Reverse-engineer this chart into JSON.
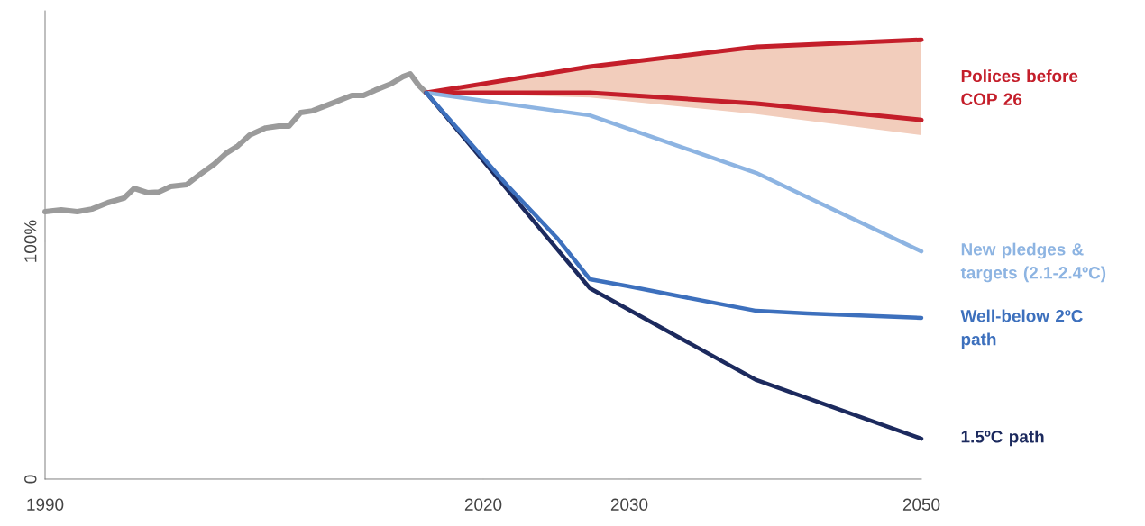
{
  "chart_data": {
    "type": "line",
    "xlim": [
      1990,
      2050
    ],
    "ylim": [
      0,
      197
    ],
    "xticks": [
      1990,
      2020,
      2030,
      2050
    ],
    "yticks": [
      0,
      {
        "value": 100,
        "label": "100%"
      }
    ],
    "series": [
      {
        "color": "#9b9b9b",
        "x": [
          1990,
          1991.1,
          1992.2,
          1993.2,
          1994.3,
          1995.4,
          1996.1,
          1997.0,
          1997.8,
          1998.6,
          1999.7,
          2000.5,
          2001.6,
          2002.4,
          2003.2,
          2004.0,
          2005.1,
          2006.0,
          2006.7,
          2007.5,
          2008.3,
          2009.9,
          2011.0,
          2011.8,
          2012.6,
          2013.7,
          2014.5,
          2015.0,
          2015.6,
          2016.1
        ],
        "values": [
          112.5,
          113.3,
          112.5,
          113.6,
          116.3,
          118.2,
          122.3,
          120.5,
          120.8,
          123.1,
          123.9,
          127.7,
          132.6,
          137.1,
          140.2,
          144.7,
          147.7,
          148.5,
          148.5,
          154.2,
          154.9,
          158.7,
          161.4,
          161.4,
          163.6,
          166.3,
          169.3,
          170.5,
          165.5,
          162.5
        ]
      },
      {
        "name": "Polices before COP 26",
        "color": "#c41e2a",
        "x": [
          2016.1,
          2027.3,
          2038.7,
          2050
        ],
        "values": [
          162.5,
          173.5,
          181.8,
          184.8
        ],
        "lower": [
          162.5,
          160.5,
          153.5,
          144.7
        ],
        "upper": [
          162.5,
          173.5,
          181.8,
          184.8
        ]
      },
      {
        "color": "#c41e2a",
        "x": [
          2016.1,
          2027.3,
          2038.7,
          2050
        ],
        "values": [
          162.5,
          162.5,
          158,
          151.1
        ]
      },
      {
        "name": "New pledges & targets (2.1-2.4ºC)",
        "color": "#8db4e2",
        "x": [
          2016.1,
          2027.3,
          2038.7,
          2050
        ],
        "values": [
          162.5,
          153,
          128.8,
          95.8
        ]
      },
      {
        "name": "1.5ºC path",
        "color": "#1c2a5e",
        "x": [
          2016.1,
          2027.3,
          2038.7,
          2050
        ],
        "values": [
          162.5,
          80.3,
          41.7,
          17.0
        ]
      },
      {
        "name": "Well-below 2ºC path",
        "color": "#3d70bd",
        "x": [
          2016.1,
          2021.6,
          2025.1,
          2027.3,
          2030.0,
          2033.8,
          2038.7,
          2042.2,
          2050
        ],
        "values": [
          162.5,
          123.9,
          101.1,
          84.1,
          81.1,
          76.5,
          70.8,
          69.7,
          67.8
        ]
      }
    ]
  }
}
